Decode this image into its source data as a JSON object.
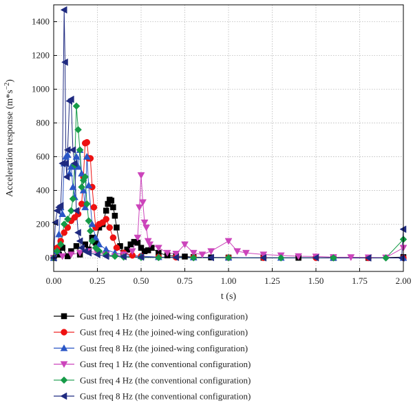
{
  "chart_data": {
    "type": "line",
    "xlabel": "t (s)",
    "ylabel": "Acceleration response (m*s",
    "ylabel_exp": "−2",
    "ylabel_close": ")",
    "xlim": [
      0,
      2.0
    ],
    "ylim": [
      -80,
      1500
    ],
    "x_ticks": [
      0.0,
      0.25,
      0.5,
      0.75,
      1.0,
      1.25,
      1.5,
      1.75,
      2.0
    ],
    "x_tick_labels": [
      "0.00",
      "0.25",
      "0.50",
      "0.75",
      "1.00",
      "1.25",
      "1.50",
      "1.75",
      "2.00"
    ],
    "y_ticks": [
      0,
      200,
      400,
      600,
      800,
      1000,
      1200,
      1400
    ],
    "y_tick_labels": [
      "0",
      "200",
      "400",
      "600",
      "800",
      "1000",
      "1200",
      "1400"
    ],
    "grid": "dotted",
    "legend_position": "below",
    "series": [
      {
        "name": "Gust freq 1 Hz (the joined-wing configuration)",
        "color": "#000000",
        "marker": "square",
        "x": [
          0.0,
          0.03,
          0.05,
          0.08,
          0.1,
          0.13,
          0.15,
          0.18,
          0.2,
          0.22,
          0.24,
          0.26,
          0.28,
          0.3,
          0.31,
          0.32,
          0.33,
          0.34,
          0.35,
          0.36,
          0.38,
          0.4,
          0.42,
          0.44,
          0.46,
          0.48,
          0.5,
          0.52,
          0.54,
          0.56,
          0.6,
          0.65,
          0.7,
          0.75,
          0.8,
          0.9,
          1.0,
          1.2,
          1.4,
          1.6,
          1.8,
          2.0
        ],
        "y": [
          0,
          20,
          60,
          10,
          40,
          70,
          20,
          80,
          50,
          120,
          90,
          180,
          200,
          280,
          320,
          345,
          340,
          300,
          250,
          180,
          70,
          30,
          50,
          80,
          95,
          90,
          60,
          40,
          45,
          60,
          30,
          15,
          10,
          8,
          5,
          3,
          2,
          1,
          1,
          0,
          0,
          5
        ]
      },
      {
        "name": "Gust freq 4 Hz (the joined-wing configuration)",
        "color": "#ee1111",
        "marker": "circle",
        "x": [
          0.0,
          0.02,
          0.04,
          0.06,
          0.08,
          0.1,
          0.12,
          0.14,
          0.16,
          0.17,
          0.18,
          0.19,
          0.2,
          0.21,
          0.22,
          0.23,
          0.24,
          0.26,
          0.28,
          0.3,
          0.32,
          0.34,
          0.36,
          0.4,
          0.45,
          0.5,
          0.6,
          0.7,
          0.8,
          1.0,
          1.2,
          1.5,
          1.8,
          2.0
        ],
        "y": [
          0,
          60,
          100,
          150,
          180,
          220,
          240,
          260,
          320,
          480,
          680,
          685,
          590,
          590,
          420,
          300,
          180,
          200,
          210,
          230,
          180,
          120,
          60,
          30,
          15,
          10,
          5,
          4,
          3,
          2,
          1,
          1,
          0,
          0
        ]
      },
      {
        "name": "Gust freq 8 Hz (the joined-wing configuration)",
        "color": "#2a56c6",
        "marker": "triangle-up",
        "x": [
          0.0,
          0.02,
          0.03,
          0.04,
          0.05,
          0.06,
          0.07,
          0.08,
          0.09,
          0.1,
          0.11,
          0.12,
          0.13,
          0.14,
          0.15,
          0.16,
          0.17,
          0.18,
          0.19,
          0.2,
          0.22,
          0.24,
          0.26,
          0.3,
          0.35,
          0.4,
          0.5,
          0.6,
          0.8,
          1.0,
          1.3,
          1.6,
          2.0
        ],
        "y": [
          0,
          40,
          140,
          300,
          260,
          560,
          600,
          610,
          500,
          540,
          420,
          360,
          600,
          540,
          640,
          500,
          400,
          300,
          600,
          430,
          200,
          120,
          80,
          50,
          30,
          20,
          10,
          5,
          3,
          2,
          1,
          1,
          0
        ]
      },
      {
        "name": "Gust freq 1 Hz (the conventional configuration)",
        "color": "#cc44bb",
        "marker": "triangle-down",
        "x": [
          0.0,
          0.05,
          0.1,
          0.15,
          0.2,
          0.25,
          0.3,
          0.35,
          0.4,
          0.45,
          0.48,
          0.49,
          0.5,
          0.51,
          0.52,
          0.53,
          0.54,
          0.55,
          0.6,
          0.65,
          0.7,
          0.75,
          0.8,
          0.85,
          0.9,
          1.0,
          1.05,
          1.1,
          1.2,
          1.3,
          1.4,
          1.5,
          1.6,
          1.7,
          1.8,
          1.9,
          2.0
        ],
        "y": [
          0,
          10,
          20,
          30,
          40,
          30,
          20,
          10,
          20,
          40,
          120,
          300,
          490,
          330,
          210,
          180,
          100,
          80,
          60,
          30,
          25,
          80,
          30,
          20,
          40,
          100,
          40,
          30,
          20,
          15,
          10,
          8,
          5,
          4,
          3,
          2,
          60
        ]
      },
      {
        "name": "Gust freq 4 Hz (the conventional configuration)",
        "color": "#159a47",
        "marker": "diamond",
        "x": [
          0.0,
          0.02,
          0.04,
          0.06,
          0.08,
          0.1,
          0.11,
          0.12,
          0.13,
          0.14,
          0.15,
          0.16,
          0.17,
          0.18,
          0.19,
          0.2,
          0.21,
          0.22,
          0.24,
          0.26,
          0.3,
          0.35,
          0.4,
          0.5,
          0.6,
          0.8,
          1.0,
          1.3,
          1.6,
          1.9,
          2.0
        ],
        "y": [
          0,
          40,
          80,
          200,
          230,
          280,
          350,
          550,
          900,
          760,
          640,
          420,
          460,
          480,
          320,
          220,
          160,
          100,
          60,
          40,
          20,
          10,
          5,
          3,
          2,
          1,
          1,
          0,
          0,
          0,
          110
        ]
      },
      {
        "name": "Gust freq 8 Hz (the conventional configuration)",
        "color": "#1f2a80",
        "marker": "triangle-left",
        "x": [
          0.0,
          0.01,
          0.02,
          0.03,
          0.04,
          0.05,
          0.06,
          0.065,
          0.07,
          0.075,
          0.08,
          0.09,
          0.1,
          0.11,
          0.12,
          0.13,
          0.14,
          0.15,
          0.16,
          0.18,
          0.2,
          0.25,
          0.3,
          0.4,
          0.5,
          0.7,
          0.9,
          1.2,
          1.5,
          1.8,
          1.99,
          2.0
        ],
        "y": [
          0,
          210,
          280,
          300,
          310,
          560,
          1470,
          1160,
          560,
          480,
          640,
          930,
          940,
          640,
          560,
          280,
          150,
          100,
          60,
          40,
          30,
          20,
          10,
          8,
          5,
          3,
          2,
          1,
          1,
          0,
          0,
          170
        ]
      }
    ]
  }
}
